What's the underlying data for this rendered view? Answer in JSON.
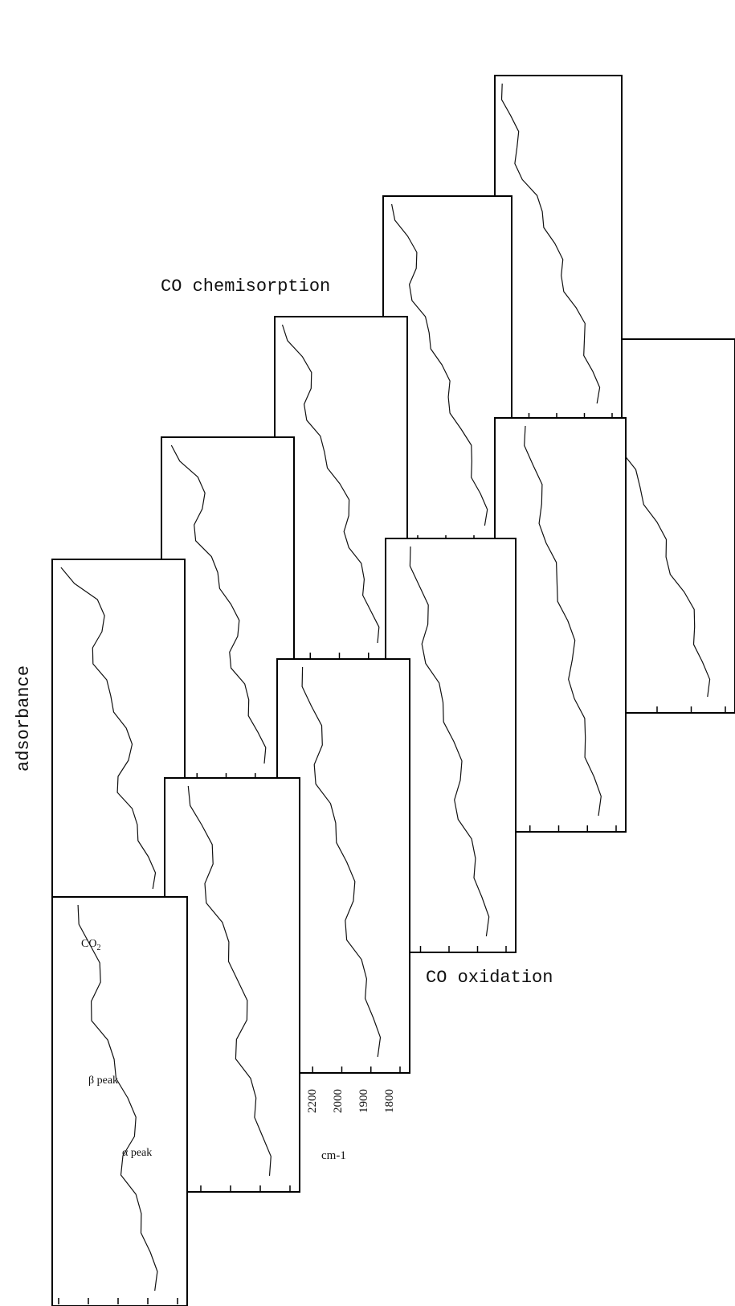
{
  "chart_data": {
    "type": "line",
    "layout": "stacked waterfall of spectra, two diagonal rows",
    "ylabel": "adsorbance",
    "xlabel": "cm-1",
    "x_ticks": [
      "2200",
      "2000",
      "1900",
      "1800"
    ],
    "row_labels": {
      "upper": "CO chemisorption",
      "lower": "CO oxidation"
    },
    "annotations": {
      "co2": "CO",
      "co2_sub": "2",
      "beta": "β peak",
      "alpha": "α peak"
    },
    "series": [
      {
        "row": "upper",
        "x": [
          2300,
          2250,
          2200,
          2150,
          2100,
          2050,
          2000,
          1950,
          1900,
          1850,
          1800
        ],
        "y": [
          0.95,
          0.86,
          0.8,
          0.72,
          0.58,
          0.45,
          0.38,
          0.24,
          0.16,
          0.1,
          0.06
        ]
      },
      {
        "row": "upper",
        "x": [
          2300,
          2250,
          2200,
          2150,
          2100,
          2050,
          2000,
          1950,
          1900,
          1850,
          1800
        ],
        "y": [
          0.96,
          0.88,
          0.82,
          0.77,
          0.58,
          0.46,
          0.4,
          0.26,
          0.18,
          0.1,
          0.06
        ]
      },
      {
        "row": "upper",
        "x": [
          2300,
          2250,
          2200,
          2150,
          2100,
          2050,
          2000,
          1950,
          1900,
          1850,
          1800
        ],
        "y": [
          0.95,
          0.8,
          0.72,
          0.76,
          0.6,
          0.48,
          0.42,
          0.3,
          0.2,
          0.12,
          0.08
        ]
      },
      {
        "row": "upper",
        "x": [
          2300,
          2250,
          2200,
          2150,
          2100,
          2050,
          2000,
          1950,
          1900,
          1850,
          1800
        ],
        "y": [
          0.96,
          0.78,
          0.7,
          0.74,
          0.58,
          0.44,
          0.36,
          0.36,
          0.22,
          0.16,
          0.1
        ]
      },
      {
        "row": "upper",
        "x": [
          2300,
          2250,
          2200,
          2150,
          2100,
          2050,
          2000,
          1950,
          1900,
          1850,
          1800
        ],
        "y": [
          0.94,
          0.7,
          0.66,
          0.72,
          0.52,
          0.4,
          0.34,
          0.4,
          0.24,
          0.16,
          0.1
        ]
      },
      {
        "row": "upper",
        "x": [
          2300,
          2250,
          2200,
          2150,
          2100,
          2050,
          2000,
          1950,
          1900,
          1850,
          1800
        ],
        "y": [
          0.95,
          0.62,
          0.58,
          0.66,
          0.5,
          0.36,
          0.34,
          0.44,
          0.26,
          0.16,
          0.12
        ]
      },
      {
        "row": "lower",
        "x": [
          2300,
          2250,
          2200,
          2150,
          2100,
          2050,
          2000,
          1950,
          1900,
          1850,
          1800
        ],
        "y": [
          0.75,
          0.68,
          0.6,
          0.56,
          0.46,
          0.36,
          0.32,
          0.3,
          0.2,
          0.12,
          0.08
        ]
      },
      {
        "row": "lower",
        "x": [
          2300,
          2250,
          2200,
          2150,
          2100,
          2050,
          2000,
          1950,
          1900,
          1850,
          1800
        ],
        "y": [
          0.8,
          0.72,
          0.64,
          0.66,
          0.5,
          0.4,
          0.34,
          0.36,
          0.2,
          0.14,
          0.1
        ]
      },
      {
        "row": "lower",
        "x": [
          2300,
          2250,
          2200,
          2150,
          2100,
          2050,
          2000,
          1950,
          1900,
          1850,
          1800
        ],
        "y": [
          0.8,
          0.72,
          0.62,
          0.68,
          0.5,
          0.4,
          0.34,
          0.4,
          0.22,
          0.16,
          0.12
        ]
      },
      {
        "row": "lower",
        "x": [
          2300,
          2250,
          2200,
          2150,
          2100,
          2050,
          2000,
          1950,
          1900,
          1850,
          1800
        ],
        "y": [
          0.82,
          0.7,
          0.6,
          0.66,
          0.46,
          0.38,
          0.3,
          0.4,
          0.22,
          0.16,
          0.1
        ]
      },
      {
        "row": "lower",
        "x": [
          2300,
          2250,
          2200,
          2150,
          2100,
          2050,
          2000,
          1950,
          1900,
          1850,
          1800
        ],
        "y": [
          0.8,
          0.7,
          0.6,
          0.68,
          0.48,
          0.36,
          0.3,
          0.42,
          0.24,
          0.16,
          0.12
        ]
      },
      {
        "row": "lower",
        "x": [
          2300,
          2250,
          2200,
          2150,
          2100,
          2050,
          2000,
          1950,
          1900,
          1850,
          1800
        ],
        "y": [
          0.82,
          0.72,
          0.62,
          0.7,
          0.48,
          0.38,
          0.32,
          0.44,
          0.24,
          0.18,
          0.12
        ]
      }
    ]
  }
}
